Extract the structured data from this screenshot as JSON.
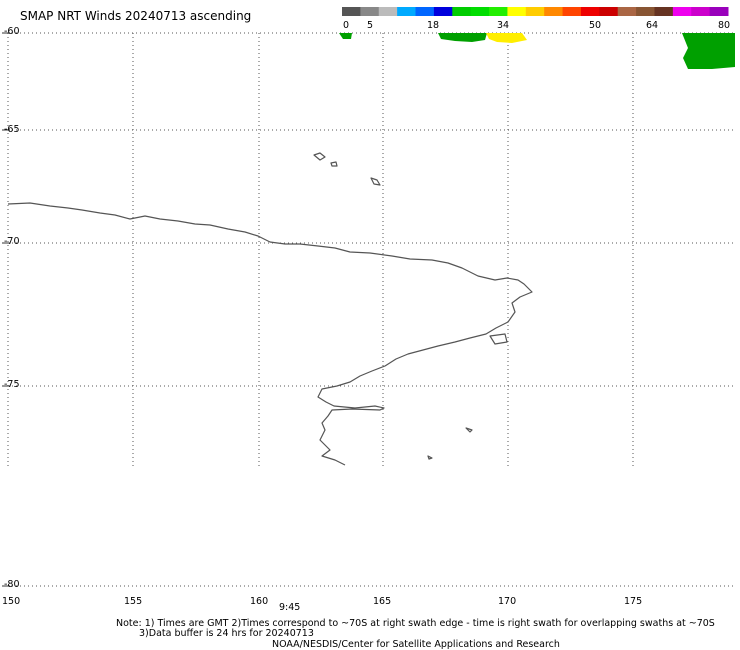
{
  "header": {
    "title": "SMAP NRT Winds 20240713 ascending"
  },
  "colorbar": {
    "labels": [
      "0",
      "5",
      "18",
      "34",
      "50",
      "64",
      "80"
    ],
    "segments": [
      "#555555",
      "#888888",
      "#bbbbbb",
      "#00aaff",
      "#0066ff",
      "#0000dd",
      "#00cc00",
      "#00dd00",
      "#22ee00",
      "#ffff00",
      "#ffcc00",
      "#ff8800",
      "#ff4400",
      "#ee0000",
      "#cc0000",
      "#aa6644",
      "#885533",
      "#663322",
      "#ee00ee",
      "#cc00cc",
      "#9900bb"
    ]
  },
  "map": {
    "lat_labels": [
      "-60",
      "-65",
      "-70",
      "-75",
      "-80"
    ],
    "lon_labels": [
      "150",
      "155",
      "160",
      "165",
      "170",
      "175"
    ],
    "time_label": "9:45",
    "coast_color": "#555555",
    "wind_colors": {
      "green": "#00a000",
      "yellow": "#ffee00"
    }
  },
  "footer": {
    "note1": "Note: 1) Times are GMT 2)Times correspond to ~70S at right swath edge - time is right swath for overlapping swaths at ~70S",
    "note2": "3)Data buffer is 24 hrs for 20240713",
    "credit": "NOAA/NESDIS/Center for Satellite Applications and Research"
  }
}
